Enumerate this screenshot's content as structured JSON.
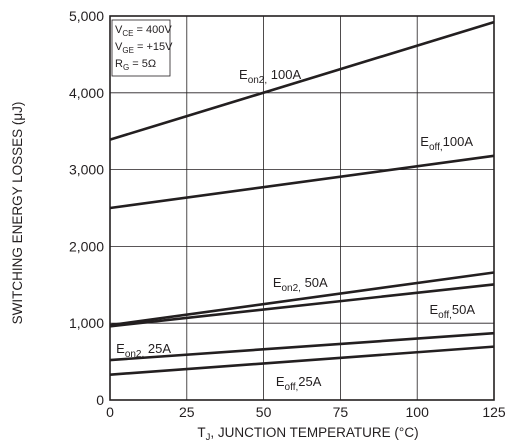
{
  "chart_data": {
    "type": "line",
    "xlabel_main": "T",
    "xlabel_sub": "J",
    "xlabel_rest": ", JUNCTION TEMPERATURE (°C)",
    "ylabel": "SWITCHING ENERGY LOSSES (μJ)",
    "xlim": [
      0,
      125
    ],
    "ylim": [
      0,
      5000
    ],
    "x_ticks": [
      0,
      25,
      50,
      75,
      100,
      125
    ],
    "x_tick_labels": [
      "0",
      "25",
      "50",
      "75",
      "100",
      "125"
    ],
    "y_ticks": [
      0,
      1000,
      2000,
      3000,
      4000,
      5000
    ],
    "y_tick_labels": [
      "0",
      "1,000",
      "2,000",
      "3,000",
      "4,000",
      "5,000"
    ],
    "grid": true,
    "conditions": [
      {
        "main": "V",
        "sub": "CE",
        "rest": " = 400V"
      },
      {
        "main": "V",
        "sub": "GE",
        "rest": " = +15V"
      },
      {
        "main": "R",
        "sub": "G",
        "rest": " = 5Ω"
      }
    ],
    "series": [
      {
        "name_main": "E",
        "name_sub": "on2,",
        "name_rest": " 100A",
        "x": [
          0,
          125
        ],
        "y": [
          3390,
          4920
        ],
        "label_at": [
          42,
          4180
        ]
      },
      {
        "name_main": "E",
        "name_sub": "off,",
        "name_rest": "100A",
        "x": [
          0,
          125
        ],
        "y": [
          2500,
          3180
        ],
        "label_at": [
          101,
          3310
        ]
      },
      {
        "name_main": "E",
        "name_sub": "on2,",
        "name_rest": " 50A",
        "x": [
          0,
          125
        ],
        "y": [
          975,
          1660
        ],
        "label_at": [
          53,
          1470
        ]
      },
      {
        "name_main": "E",
        "name_sub": "off,",
        "name_rest": "50A",
        "x": [
          0,
          125
        ],
        "y": [
          960,
          1505
        ],
        "label_at": [
          104,
          1120
        ]
      },
      {
        "name_main": "E",
        "name_sub": "on2,",
        "name_rest": " 25A",
        "x": [
          0,
          125
        ],
        "y": [
          520,
          870
        ],
        "label_at": [
          2,
          610
        ]
      },
      {
        "name_main": "E",
        "name_sub": "off,",
        "name_rest": "25A",
        "x": [
          0,
          125
        ],
        "y": [
          330,
          695
        ],
        "label_at": [
          54,
          180
        ]
      }
    ]
  }
}
